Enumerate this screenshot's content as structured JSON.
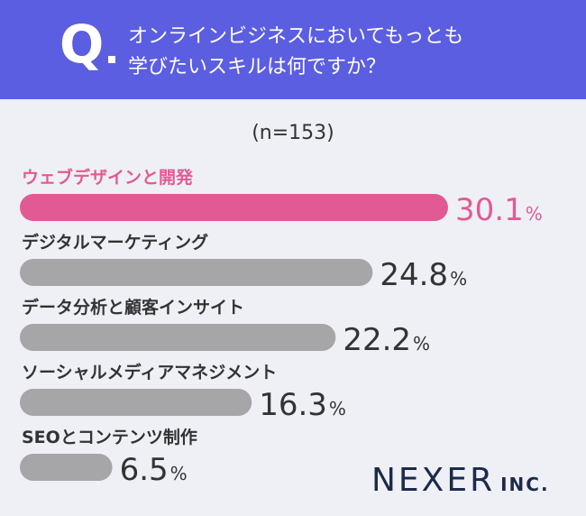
{
  "header": {
    "q_letter": "Q",
    "question_line1": "オンラインビジネスにおいてもっとも",
    "question_line2": "学びたいスキルは何ですか？"
  },
  "sample_size": "(n=153)",
  "logo": {
    "name": "NEXER",
    "suffix": "INC."
  },
  "colors": {
    "header": "#5b5ee0",
    "highlight": "#e25a93",
    "bar": "#a6a6a8",
    "text": "#333333",
    "background": "#eef0f6"
  },
  "chart_data": {
    "type": "bar",
    "orientation": "horizontal",
    "categories": [
      "ウェブデザインと開発",
      "デジタルマーケティング",
      "データ分析と顧客インサイト",
      "ソーシャルメディアマネジメント",
      "SEOとコンテンツ制作"
    ],
    "values": [
      30.1,
      24.8,
      22.2,
      16.3,
      6.5
    ],
    "value_labels": [
      "30.1",
      "24.8",
      "22.2",
      "16.3",
      "6.5"
    ],
    "unit": "%",
    "highlight_index": 0
  }
}
